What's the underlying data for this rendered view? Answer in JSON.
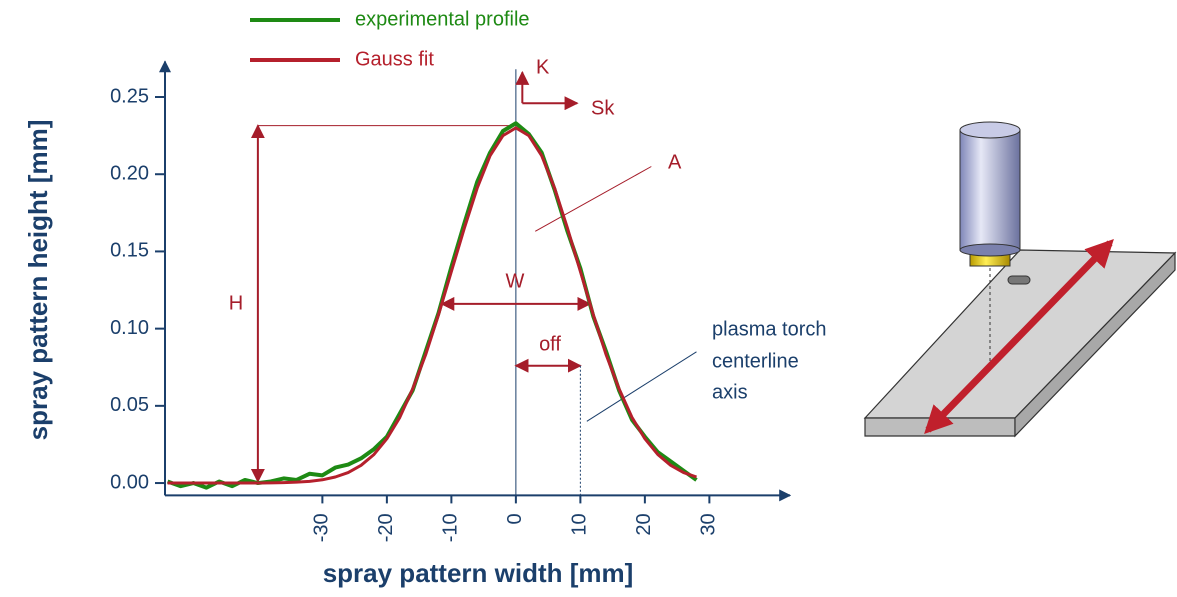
{
  "chart_data": {
    "type": "line",
    "x_label": "spray pattern width [mm]",
    "y_label": "spray pattern height [mm]",
    "x": [
      -54,
      -52,
      -50,
      -48,
      -46,
      -44,
      -42,
      -40,
      -38,
      -36,
      -34,
      -32,
      -30,
      -28,
      -26,
      -24,
      -22,
      -20,
      -18,
      -16,
      -14,
      -12,
      -10,
      -8,
      -6,
      -4,
      -2,
      0,
      2,
      4,
      6,
      8,
      10,
      12,
      14,
      16,
      18,
      20,
      22,
      24,
      26,
      28
    ],
    "series": [
      {
        "name": "experimental profile",
        "color": "#1e8a14",
        "values": [
          0.001,
          -0.002,
          0.0,
          -0.003,
          0.001,
          -0.002,
          0.002,
          0.0,
          0.001,
          0.003,
          0.002,
          0.006,
          0.005,
          0.01,
          0.012,
          0.016,
          0.022,
          0.03,
          0.045,
          0.06,
          0.085,
          0.11,
          0.14,
          0.168,
          0.195,
          0.214,
          0.228,
          0.233,
          0.226,
          0.214,
          0.19,
          0.163,
          0.139,
          0.108,
          0.085,
          0.06,
          0.041,
          0.03,
          0.02,
          0.014,
          0.008,
          0.002
        ]
      },
      {
        "name": "Gauss fit",
        "color": "#b5202c",
        "values": [
          0,
          0,
          0,
          0,
          0,
          0,
          0,
          0,
          0.0001,
          0.0003,
          0.0006,
          0.0011,
          0.0021,
          0.0039,
          0.0068,
          0.0115,
          0.0185,
          0.0287,
          0.0425,
          0.061,
          0.083,
          0.109,
          0.137,
          0.165,
          0.191,
          0.212,
          0.225,
          0.23,
          0.225,
          0.212,
          0.191,
          0.165,
          0.137,
          0.109,
          0.083,
          0.061,
          0.0425,
          0.0287,
          0.0185,
          0.0115,
          0.0068,
          0.0039
        ]
      }
    ],
    "xlim": [
      -54.4,
      42.5
    ],
    "ylim": [
      -0.008,
      0.273
    ],
    "xticks": [
      -30,
      -20,
      -10,
      0,
      10,
      20,
      30
    ],
    "yticks": [
      {
        "value": 0,
        "label": "0.00"
      },
      {
        "value": 0.05,
        "label": "0.05"
      },
      {
        "value": 0.1,
        "label": "0.10"
      },
      {
        "value": 0.15,
        "label": "0.15"
      },
      {
        "value": 0.2,
        "label": "0.20"
      },
      {
        "value": 0.25,
        "label": "0.25"
      }
    ],
    "annotations": [
      "H",
      "W",
      "off",
      "K",
      "Sk",
      "A",
      "plasma torch",
      "centerline",
      "axis"
    ]
  }
}
